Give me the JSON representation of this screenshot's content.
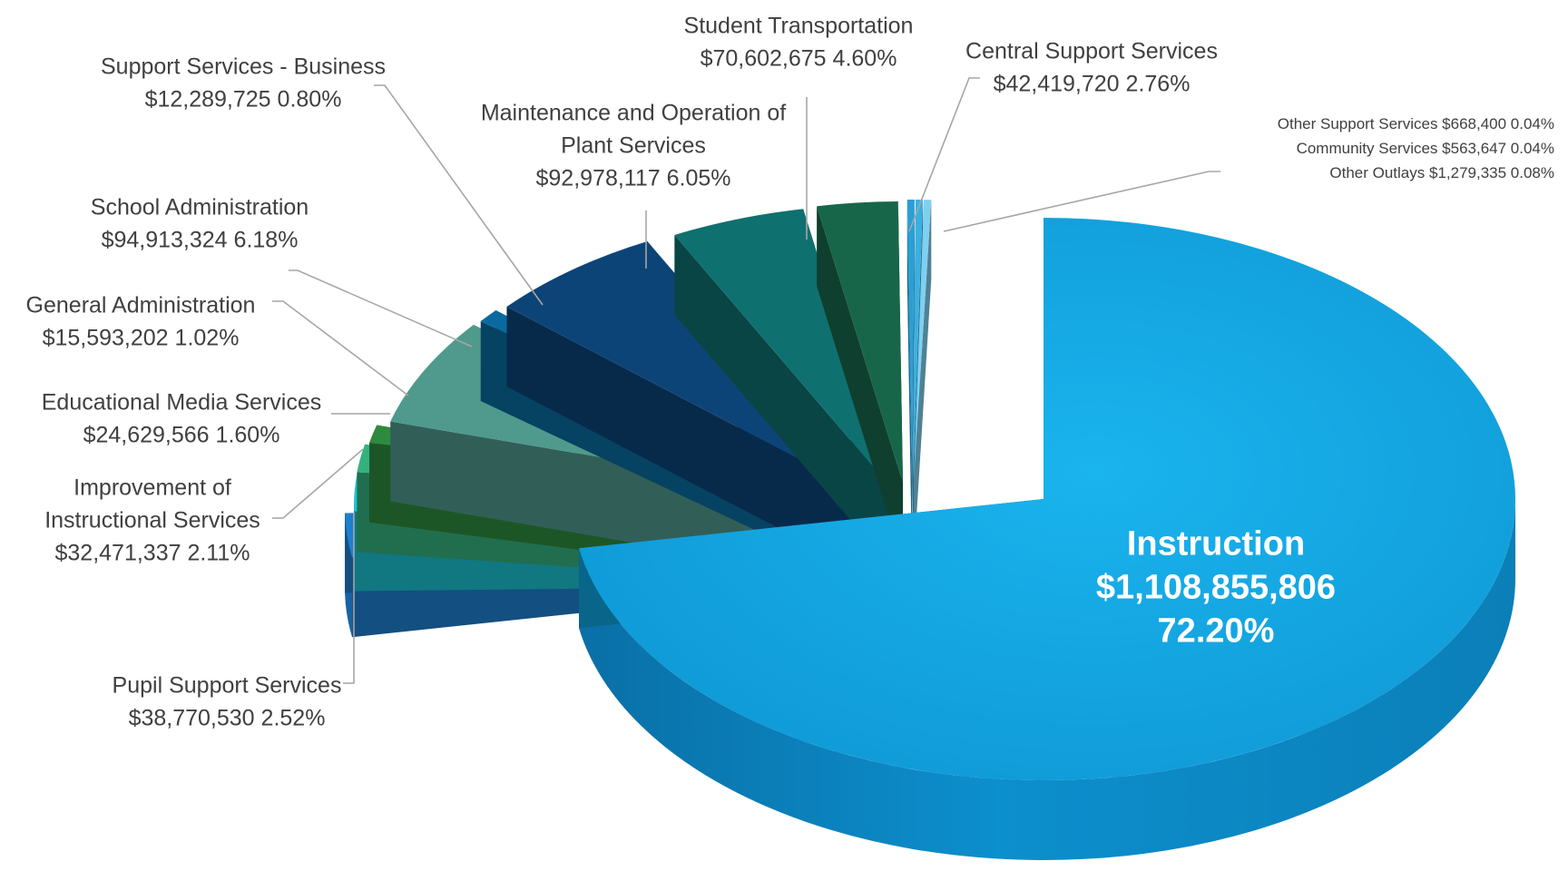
{
  "chart_data": {
    "type": "pie",
    "title": "",
    "slices": [
      {
        "name": "Instruction",
        "amount": "$1,108,855,806",
        "percent": "72.20%",
        "value": 72.2,
        "color": "#0fa3dd"
      },
      {
        "name": "Pupil Support Services",
        "amount": "$38,770,530",
        "percent": "2.52%",
        "value": 2.52,
        "color": "#1f7fcf"
      },
      {
        "name": "Improvement of Instructional Services",
        "amount": "$32,471,337",
        "percent": "2.11%",
        "value": 2.11,
        "color": "#1cc0d0"
      },
      {
        "name": "Educational Media Services",
        "amount": "$24,629,566",
        "percent": "1.60%",
        "value": 1.6,
        "color": "#33b27e"
      },
      {
        "name": "General Administration",
        "amount": "$15,593,202",
        "percent": "1.02%",
        "value": 1.02,
        "color": "#2e8b3e"
      },
      {
        "name": "School Administration",
        "amount": "$94,913,324",
        "percent": "6.18%",
        "value": 6.18,
        "color": "#4f9a8c"
      },
      {
        "name": "Support Services - Business",
        "amount": "$12,289,725",
        "percent": "0.80%",
        "value": 0.8,
        "color": "#0a6a9e"
      },
      {
        "name": "Maintenance and Operation of Plant Services",
        "amount": "$92,978,117",
        "percent": "6.05%",
        "value": 6.05,
        "color": "#0d4478"
      },
      {
        "name": "Student Transportation",
        "amount": "$70,602,675",
        "percent": "4.60%",
        "value": 4.6,
        "color": "#0f7070"
      },
      {
        "name": "Central Support Services",
        "amount": "$42,419,720",
        "percent": "2.76%",
        "value": 2.76,
        "color": "#18664a"
      },
      {
        "name": "Other Support Services",
        "amount": "$668,400",
        "percent": "0.04%",
        "value": 0.04,
        "color": "#2a9fd6"
      },
      {
        "name": "Community Services",
        "amount": "$563,647",
        "percent": "0.04%",
        "value": 0.04,
        "color": "#3bb0e0"
      },
      {
        "name": "Other Outlays",
        "amount": "$1,279,335",
        "percent": "0.08%",
        "value": 0.08,
        "color": "#7fd0f0"
      }
    ]
  }
}
